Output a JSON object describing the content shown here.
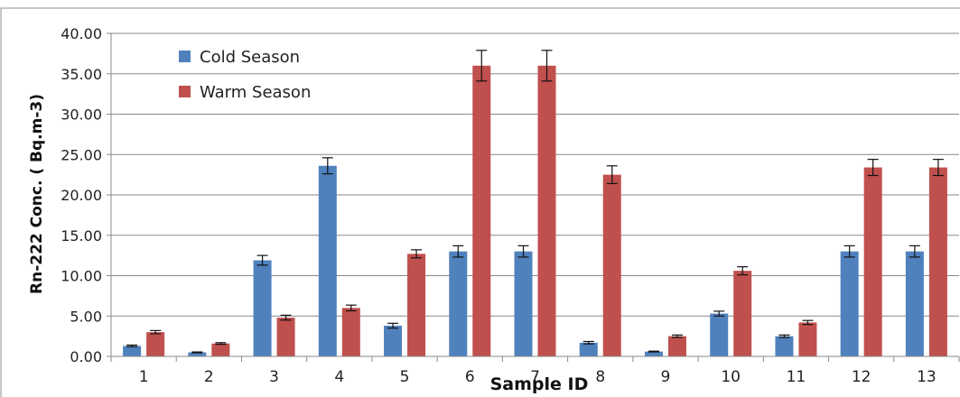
{
  "chart_data": {
    "type": "bar",
    "categories": [
      "1",
      "2",
      "3",
      "4",
      "5",
      "6",
      "7",
      "8",
      "9",
      "10",
      "11",
      "12",
      "13"
    ],
    "series": [
      {
        "name": "Cold Season",
        "color": "#4F81BD",
        "values": [
          1.3,
          0.5,
          11.9,
          23.6,
          3.8,
          13.0,
          13.0,
          1.7,
          0.6,
          5.3,
          2.5,
          13.0,
          13.0
        ],
        "errors": [
          0.1,
          0.05,
          0.6,
          1.0,
          0.3,
          0.7,
          0.7,
          0.15,
          0.05,
          0.3,
          0.15,
          0.7,
          0.7
        ]
      },
      {
        "name": "Warm Season",
        "color": "#C0504D",
        "values": [
          3.0,
          1.6,
          4.8,
          6.0,
          12.7,
          36.0,
          36.0,
          22.5,
          2.5,
          10.6,
          4.2,
          23.4,
          23.4
        ],
        "errors": [
          0.2,
          0.1,
          0.3,
          0.35,
          0.5,
          1.9,
          1.9,
          1.1,
          0.15,
          0.5,
          0.25,
          1.0,
          1.0
        ]
      }
    ],
    "yticks": [
      "0.00",
      "5.00",
      "10.00",
      "15.00",
      "20.00",
      "25.00",
      "30.00",
      "35.00",
      "40.00"
    ],
    "ylim": [
      0,
      40
    ],
    "xlabel": "Sample ID",
    "ylabel": "Rn-222 Conc. ( Bq.m-3)",
    "grid": true,
    "error_bars": true,
    "legend_position": "top-left"
  }
}
